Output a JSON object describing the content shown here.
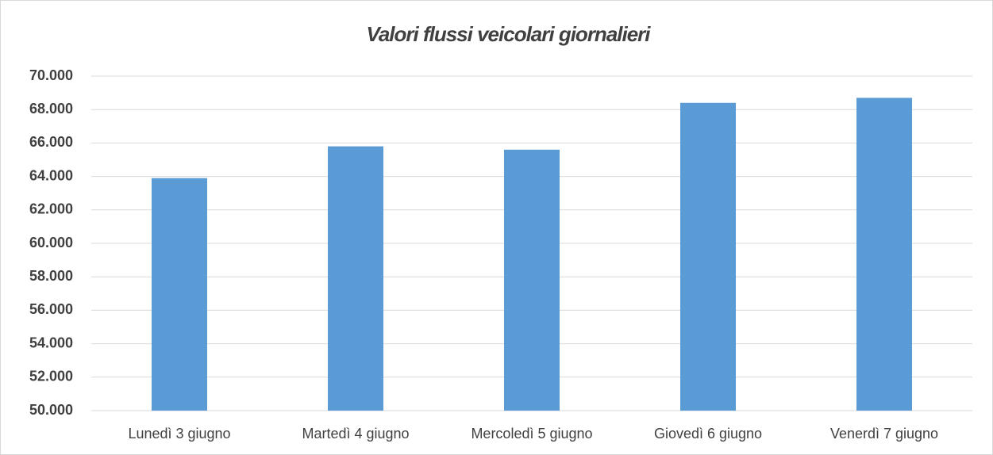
{
  "chart_data": {
    "type": "bar",
    "title": "Valori flussi veicolari giornalieri",
    "categories": [
      "Lunedì 3 giugno",
      "Martedì 4 giugno",
      "Mercoledì 5 giugno",
      "Giovedì 6 giugno",
      "Venerdì 7 giugno"
    ],
    "values": [
      63900,
      65800,
      65600,
      68400,
      68700
    ],
    "color": "#5b9bd5",
    "ylim": [
      50000,
      70000
    ],
    "yticks": [
      {
        "value": 50000,
        "label": "50.000"
      },
      {
        "value": 52000,
        "label": "52.000"
      },
      {
        "value": 54000,
        "label": "54.000"
      },
      {
        "value": 56000,
        "label": "56.000"
      },
      {
        "value": 58000,
        "label": "58.000"
      },
      {
        "value": 60000,
        "label": "60.000"
      },
      {
        "value": 62000,
        "label": "62.000"
      },
      {
        "value": 64000,
        "label": "64.000"
      },
      {
        "value": 66000,
        "label": "66.000"
      },
      {
        "value": 68000,
        "label": "68.000"
      },
      {
        "value": 70000,
        "label": "70.000"
      }
    ],
    "grid": true
  }
}
